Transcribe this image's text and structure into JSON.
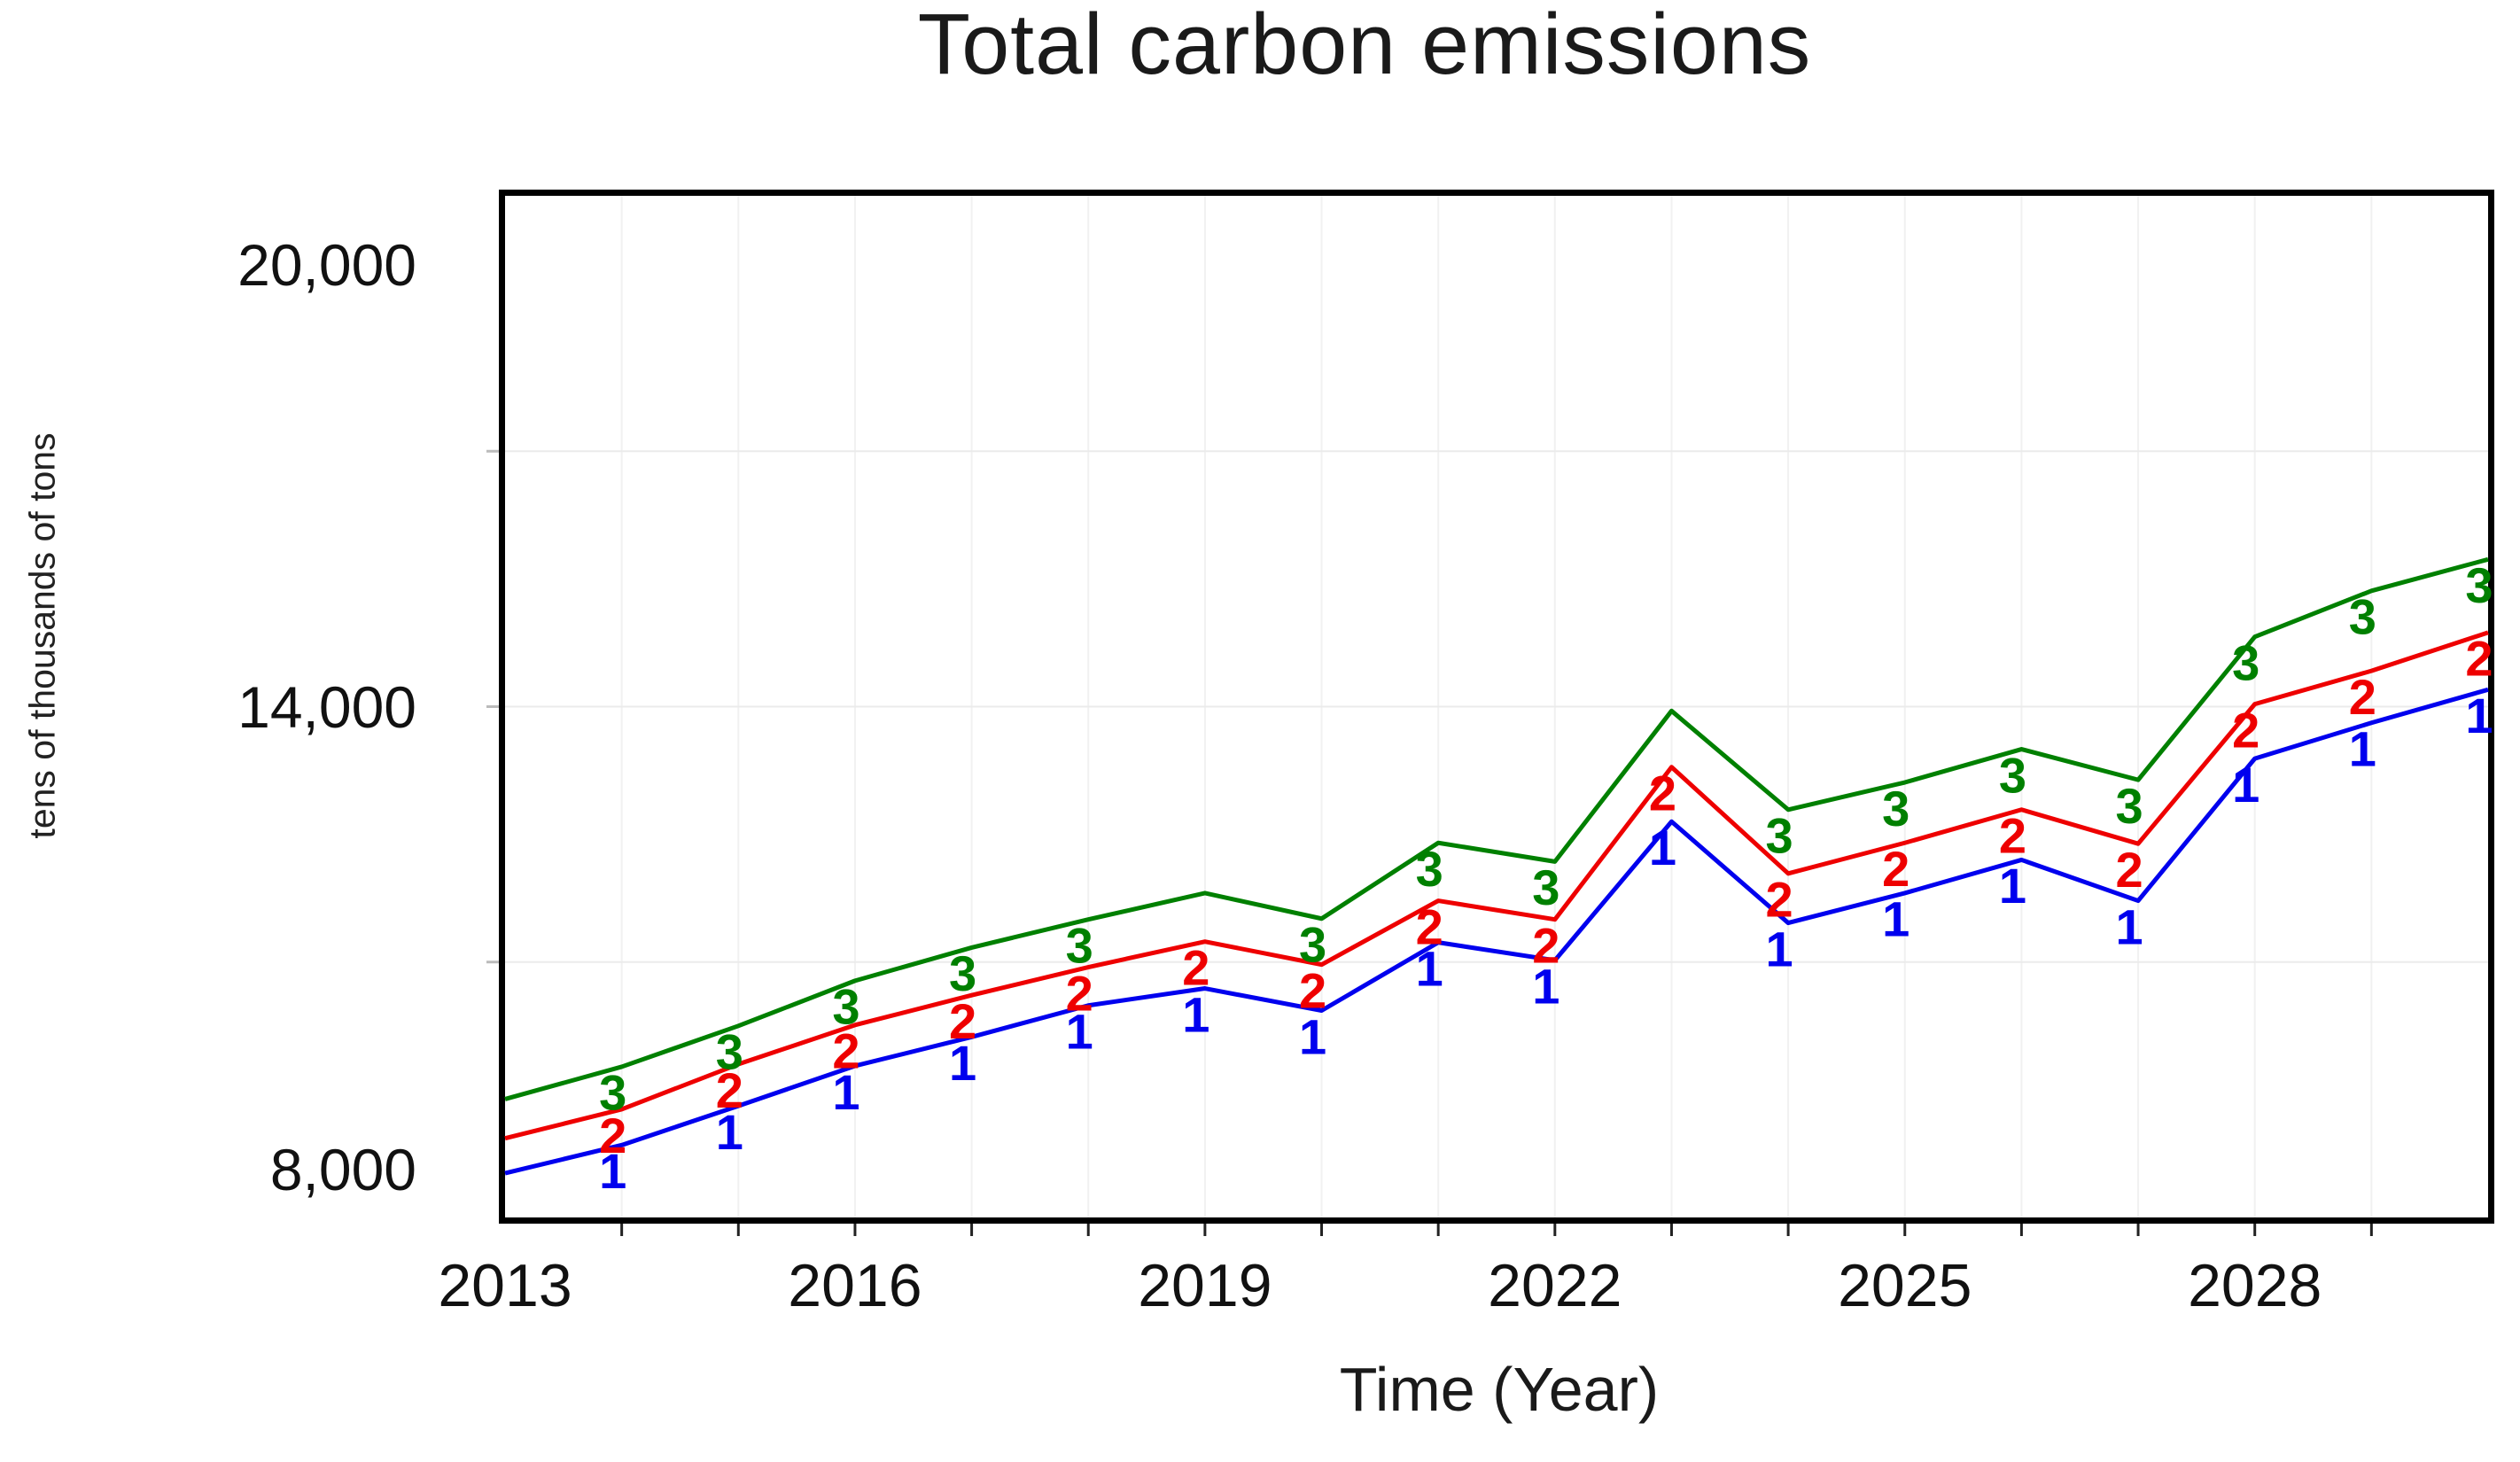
{
  "title": "Total carbon emissions",
  "y_axis": {
    "label": "tens of thousands of tons",
    "tick_labels": [
      "20,000",
      "14,000",
      "8,000"
    ],
    "tick_values": [
      20000,
      14000,
      8000
    ],
    "min": 8000,
    "max": 20000,
    "gridline_values": [
      11000,
      14000,
      17000
    ]
  },
  "x_axis": {
    "label": "Time (Year)",
    "tick_labels": [
      "2013",
      "2016",
      "2019",
      "2022",
      "2025",
      "2028"
    ],
    "tick_values": [
      2013,
      2016,
      2019,
      2022,
      2025,
      2028
    ],
    "min": 2013,
    "max": 2030,
    "gridline_step": 1
  },
  "chart_data": {
    "type": "line",
    "title": "Total carbon emissions",
    "xlabel": "Time (Year)",
    "ylabel": "tens of thousands of tons",
    "xlim": [
      2013,
      2030
    ],
    "ylim": [
      8000,
      20000
    ],
    "grid": "faint yearly verticals; faint horizontals at 11000/14000/17000",
    "legend_position": "none (series identified by numeric markers on lines)",
    "x": [
      2013,
      2014,
      2015,
      2016,
      2017,
      2018,
      2019,
      2020,
      2021,
      2022,
      2023,
      2024,
      2025,
      2026,
      2027,
      2028,
      2029,
      2030
    ],
    "series": [
      {
        "name": "1",
        "marker": "1",
        "color": "#0000ee",
        "values": [
          8520,
          8850,
          9310,
          9780,
          10120,
          10490,
          10690,
          10430,
          11230,
          11020,
          12650,
          11460,
          11810,
          12200,
          11720,
          13390,
          13810,
          14200
        ],
        "marker_years": [
          2014,
          2015,
          2016,
          2017,
          2018,
          2019,
          2020,
          2021,
          2022,
          2023,
          2024,
          2025,
          2026,
          2027,
          2028,
          2029,
          2030
        ]
      },
      {
        "name": "2",
        "marker": "2",
        "color": "#ee0000",
        "values": [
          8930,
          9270,
          9800,
          10260,
          10610,
          10940,
          11240,
          10970,
          11720,
          11500,
          13290,
          12040,
          12400,
          12790,
          12390,
          14030,
          14420,
          14870
        ],
        "marker_years": [
          2014,
          2015,
          2016,
          2017,
          2018,
          2019,
          2020,
          2021,
          2022,
          2023,
          2024,
          2025,
          2026,
          2027,
          2028,
          2029,
          2030
        ]
      },
      {
        "name": "3",
        "marker": "3",
        "color": "#008000",
        "values": [
          9390,
          9770,
          10250,
          10780,
          11170,
          11500,
          11810,
          11510,
          12400,
          12180,
          13950,
          12790,
          13110,
          13500,
          13140,
          14820,
          15360,
          15730
        ],
        "marker_years": [
          2014,
          2015,
          2016,
          2017,
          2018,
          2020,
          2021,
          2022,
          2024,
          2025,
          2026,
          2027,
          2028,
          2029,
          2030
        ]
      }
    ]
  }
}
